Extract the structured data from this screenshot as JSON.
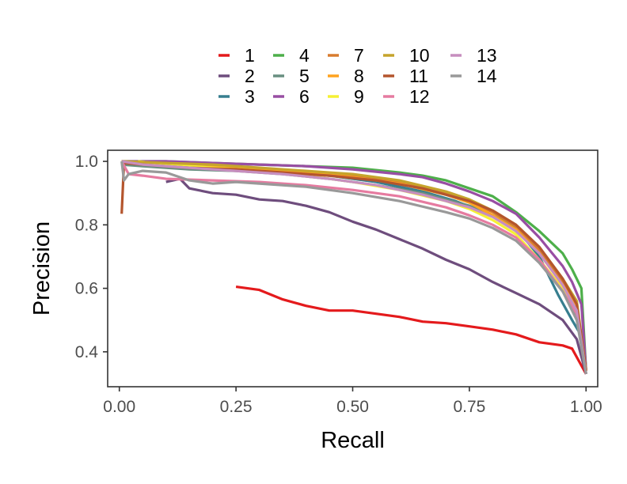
{
  "chart_data": {
    "type": "line",
    "xlabel": "Recall",
    "ylabel": "Precision",
    "xlim": [
      -0.025,
      1.025
    ],
    "ylim": [
      0.29,
      1.035
    ],
    "xticks": [
      {
        "value": 0.0,
        "label": "0.00"
      },
      {
        "value": 0.25,
        "label": "0.25"
      },
      {
        "value": 0.5,
        "label": "0.50"
      },
      {
        "value": 0.75,
        "label": "0.75"
      },
      {
        "value": 1.0,
        "label": "1.00"
      }
    ],
    "yticks": [
      {
        "value": 0.4,
        "label": "0.4"
      },
      {
        "value": 0.6,
        "label": "0.6"
      },
      {
        "value": 0.8,
        "label": "0.8"
      },
      {
        "value": 1.0,
        "label": "1.0"
      }
    ],
    "grid": false,
    "legend_position": "top",
    "series": [
      {
        "name": "1",
        "color": "#e41a1c",
        "points": [
          [
            0.25,
            0.605
          ],
          [
            0.3,
            0.595
          ],
          [
            0.35,
            0.565
          ],
          [
            0.4,
            0.545
          ],
          [
            0.45,
            0.53
          ],
          [
            0.5,
            0.53
          ],
          [
            0.55,
            0.52
          ],
          [
            0.6,
            0.51
          ],
          [
            0.65,
            0.495
          ],
          [
            0.7,
            0.49
          ],
          [
            0.75,
            0.48
          ],
          [
            0.8,
            0.47
          ],
          [
            0.85,
            0.455
          ],
          [
            0.9,
            0.43
          ],
          [
            0.95,
            0.42
          ],
          [
            0.97,
            0.41
          ],
          [
            1.0,
            0.33
          ]
        ]
      },
      {
        "name": "2",
        "color": "#6e4d7d",
        "points": [
          [
            0.1,
            0.935
          ],
          [
            0.13,
            0.945
          ],
          [
            0.15,
            0.915
          ],
          [
            0.2,
            0.9
          ],
          [
            0.25,
            0.895
          ],
          [
            0.3,
            0.88
          ],
          [
            0.35,
            0.875
          ],
          [
            0.4,
            0.86
          ],
          [
            0.45,
            0.84
          ],
          [
            0.5,
            0.81
          ],
          [
            0.55,
            0.785
          ],
          [
            0.6,
            0.755
          ],
          [
            0.65,
            0.725
          ],
          [
            0.7,
            0.69
          ],
          [
            0.75,
            0.66
          ],
          [
            0.8,
            0.62
          ],
          [
            0.85,
            0.585
          ],
          [
            0.9,
            0.55
          ],
          [
            0.95,
            0.5
          ],
          [
            0.98,
            0.44
          ],
          [
            1.0,
            0.33
          ]
        ]
      },
      {
        "name": "3",
        "color": "#377e8f",
        "points": [
          [
            0.005,
            1.0
          ],
          [
            0.05,
            0.99
          ],
          [
            0.15,
            0.985
          ],
          [
            0.25,
            0.98
          ],
          [
            0.35,
            0.97
          ],
          [
            0.45,
            0.955
          ],
          [
            0.55,
            0.935
          ],
          [
            0.65,
            0.905
          ],
          [
            0.72,
            0.875
          ],
          [
            0.8,
            0.83
          ],
          [
            0.85,
            0.79
          ],
          [
            0.9,
            0.7
          ],
          [
            0.94,
            0.58
          ],
          [
            0.97,
            0.5
          ],
          [
            0.99,
            0.45
          ],
          [
            1.0,
            0.33
          ]
        ]
      },
      {
        "name": "4",
        "color": "#4daf4a",
        "points": [
          [
            0.005,
            1.0
          ],
          [
            0.1,
            1.0
          ],
          [
            0.2,
            0.995
          ],
          [
            0.3,
            0.99
          ],
          [
            0.4,
            0.985
          ],
          [
            0.5,
            0.98
          ],
          [
            0.6,
            0.965
          ],
          [
            0.65,
            0.955
          ],
          [
            0.7,
            0.94
          ],
          [
            0.75,
            0.915
          ],
          [
            0.8,
            0.89
          ],
          [
            0.85,
            0.84
          ],
          [
            0.9,
            0.78
          ],
          [
            0.95,
            0.71
          ],
          [
            0.97,
            0.66
          ],
          [
            0.99,
            0.6
          ],
          [
            1.0,
            0.34
          ]
        ]
      },
      {
        "name": "5",
        "color": "#698f80",
        "points": [
          [
            0.005,
            0.99
          ],
          [
            0.05,
            0.985
          ],
          [
            0.15,
            0.975
          ],
          [
            0.25,
            0.97
          ],
          [
            0.35,
            0.96
          ],
          [
            0.45,
            0.945
          ],
          [
            0.55,
            0.925
          ],
          [
            0.65,
            0.9
          ],
          [
            0.75,
            0.86
          ],
          [
            0.8,
            0.83
          ],
          [
            0.85,
            0.78
          ],
          [
            0.9,
            0.72
          ],
          [
            0.94,
            0.63
          ],
          [
            0.97,
            0.55
          ],
          [
            0.99,
            0.46
          ],
          [
            1.0,
            0.33
          ]
        ]
      },
      {
        "name": "6",
        "color": "#984ea3",
        "points": [
          [
            0.005,
            1.0
          ],
          [
            0.1,
            1.0
          ],
          [
            0.2,
            0.995
          ],
          [
            0.3,
            0.99
          ],
          [
            0.4,
            0.985
          ],
          [
            0.5,
            0.975
          ],
          [
            0.6,
            0.96
          ],
          [
            0.65,
            0.95
          ],
          [
            0.7,
            0.93
          ],
          [
            0.75,
            0.905
          ],
          [
            0.8,
            0.875
          ],
          [
            0.85,
            0.835
          ],
          [
            0.9,
            0.76
          ],
          [
            0.95,
            0.67
          ],
          [
            0.97,
            0.62
          ],
          [
            0.99,
            0.55
          ],
          [
            1.0,
            0.34
          ]
        ]
      },
      {
        "name": "7",
        "color": "#d87c2f",
        "points": [
          [
            0.005,
            1.0
          ],
          [
            0.1,
            0.99
          ],
          [
            0.2,
            0.985
          ],
          [
            0.3,
            0.975
          ],
          [
            0.4,
            0.965
          ],
          [
            0.5,
            0.955
          ],
          [
            0.6,
            0.935
          ],
          [
            0.7,
            0.9
          ],
          [
            0.75,
            0.875
          ],
          [
            0.8,
            0.84
          ],
          [
            0.85,
            0.795
          ],
          [
            0.9,
            0.72
          ],
          [
            0.95,
            0.62
          ],
          [
            0.98,
            0.55
          ],
          [
            1.0,
            0.34
          ]
        ]
      },
      {
        "name": "8",
        "color": "#ffa31f",
        "points": [
          [
            0.005,
            1.0
          ],
          [
            0.1,
            0.99
          ],
          [
            0.2,
            0.985
          ],
          [
            0.3,
            0.975
          ],
          [
            0.4,
            0.965
          ],
          [
            0.5,
            0.95
          ],
          [
            0.6,
            0.93
          ],
          [
            0.7,
            0.895
          ],
          [
            0.75,
            0.87
          ],
          [
            0.8,
            0.83
          ],
          [
            0.85,
            0.785
          ],
          [
            0.9,
            0.71
          ],
          [
            0.95,
            0.61
          ],
          [
            0.98,
            0.54
          ],
          [
            1.0,
            0.34
          ]
        ]
      },
      {
        "name": "9",
        "color": "#f5f034",
        "points": [
          [
            0.04,
            1.0
          ],
          [
            0.1,
            0.99
          ],
          [
            0.2,
            0.98
          ],
          [
            0.3,
            0.97
          ],
          [
            0.4,
            0.955
          ],
          [
            0.5,
            0.935
          ],
          [
            0.6,
            0.91
          ],
          [
            0.7,
            0.875
          ],
          [
            0.75,
            0.85
          ],
          [
            0.8,
            0.815
          ],
          [
            0.85,
            0.77
          ],
          [
            0.9,
            0.69
          ],
          [
            0.95,
            0.6
          ],
          [
            0.98,
            0.53
          ],
          [
            1.0,
            0.34
          ]
        ]
      },
      {
        "name": "10",
        "color": "#c6a42c",
        "points": [
          [
            0.005,
            1.0
          ],
          [
            0.1,
            0.995
          ],
          [
            0.2,
            0.99
          ],
          [
            0.3,
            0.98
          ],
          [
            0.4,
            0.97
          ],
          [
            0.5,
            0.96
          ],
          [
            0.6,
            0.94
          ],
          [
            0.7,
            0.905
          ],
          [
            0.75,
            0.88
          ],
          [
            0.8,
            0.845
          ],
          [
            0.85,
            0.8
          ],
          [
            0.9,
            0.73
          ],
          [
            0.95,
            0.63
          ],
          [
            0.98,
            0.56
          ],
          [
            1.0,
            0.34
          ]
        ]
      },
      {
        "name": "11",
        "color": "#b4552d",
        "points": [
          [
            0.005,
            0.835
          ],
          [
            0.01,
            0.995
          ],
          [
            0.05,
            0.99
          ],
          [
            0.15,
            0.98
          ],
          [
            0.25,
            0.975
          ],
          [
            0.35,
            0.965
          ],
          [
            0.45,
            0.955
          ],
          [
            0.55,
            0.94
          ],
          [
            0.65,
            0.915
          ],
          [
            0.75,
            0.875
          ],
          [
            0.8,
            0.845
          ],
          [
            0.85,
            0.8
          ],
          [
            0.9,
            0.73
          ],
          [
            0.95,
            0.63
          ],
          [
            0.98,
            0.55
          ],
          [
            1.0,
            0.34
          ]
        ]
      },
      {
        "name": "12",
        "color": "#e67ba0",
        "points": [
          [
            0.005,
            1.0
          ],
          [
            0.02,
            0.96
          ],
          [
            0.05,
            0.955
          ],
          [
            0.1,
            0.945
          ],
          [
            0.2,
            0.94
          ],
          [
            0.3,
            0.935
          ],
          [
            0.4,
            0.925
          ],
          [
            0.5,
            0.91
          ],
          [
            0.6,
            0.89
          ],
          [
            0.7,
            0.855
          ],
          [
            0.75,
            0.83
          ],
          [
            0.8,
            0.8
          ],
          [
            0.85,
            0.76
          ],
          [
            0.9,
            0.69
          ],
          [
            0.95,
            0.59
          ],
          [
            0.98,
            0.52
          ],
          [
            1.0,
            0.33
          ]
        ]
      },
      {
        "name": "13",
        "color": "#c78ebf",
        "points": [
          [
            0.005,
            1.0
          ],
          [
            0.05,
            0.99
          ],
          [
            0.15,
            0.98
          ],
          [
            0.25,
            0.97
          ],
          [
            0.35,
            0.96
          ],
          [
            0.45,
            0.945
          ],
          [
            0.55,
            0.925
          ],
          [
            0.65,
            0.895
          ],
          [
            0.75,
            0.855
          ],
          [
            0.8,
            0.825
          ],
          [
            0.85,
            0.78
          ],
          [
            0.9,
            0.71
          ],
          [
            0.95,
            0.61
          ],
          [
            0.98,
            0.53
          ],
          [
            1.0,
            0.33
          ]
        ]
      },
      {
        "name": "14",
        "color": "#999999",
        "points": [
          [
            0.005,
            1.0
          ],
          [
            0.01,
            0.94
          ],
          [
            0.02,
            0.96
          ],
          [
            0.05,
            0.97
          ],
          [
            0.1,
            0.965
          ],
          [
            0.15,
            0.94
          ],
          [
            0.2,
            0.93
          ],
          [
            0.25,
            0.935
          ],
          [
            0.3,
            0.93
          ],
          [
            0.4,
            0.92
          ],
          [
            0.5,
            0.9
          ],
          [
            0.6,
            0.875
          ],
          [
            0.7,
            0.84
          ],
          [
            0.75,
            0.82
          ],
          [
            0.8,
            0.79
          ],
          [
            0.85,
            0.75
          ],
          [
            0.9,
            0.68
          ],
          [
            0.95,
            0.59
          ],
          [
            0.98,
            0.5
          ],
          [
            1.0,
            0.33
          ]
        ]
      }
    ]
  }
}
